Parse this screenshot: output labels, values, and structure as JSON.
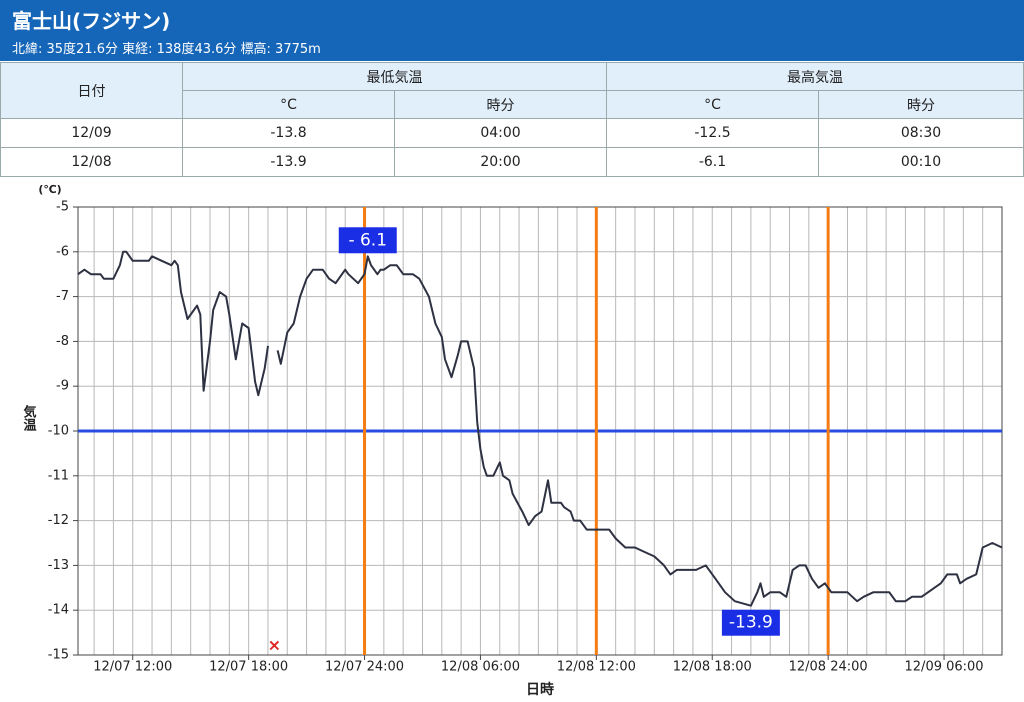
{
  "header": {
    "title": "富士山(フジサン)",
    "subtitle": "北緯: 35度21.6分 東経: 138度43.6分 標高: 3775m"
  },
  "table": {
    "header": [
      "日付",
      "最低気温",
      "最高気温"
    ],
    "subheader": [
      "°C",
      "時分",
      "°C",
      "時分"
    ],
    "rows": [
      [
        "12/09",
        "-13.8",
        "04:00",
        "-12.5",
        "08:30"
      ],
      [
        "12/08",
        "-13.9",
        "20:00",
        "-6.1",
        "00:10"
      ]
    ]
  },
  "chart_data": {
    "type": "line",
    "y_unit": "(℃)",
    "ylabel": "気温",
    "xlabel": "日時",
    "color": "#2e3142",
    "xlim": [
      "12/07 09:10",
      "12/09 09:00"
    ],
    "ylim": [
      -5,
      -15
    ],
    "yticks": [
      -5,
      -6,
      -7,
      -8,
      -9,
      -10,
      -11,
      -12,
      -13,
      -14,
      -15
    ],
    "xticks": [
      "12/07 12:00",
      "12/07 18:00",
      "12/07 24:00",
      "12/08 06:00",
      "12/08 12:00",
      "12/08 18:00",
      "12/08 24:00",
      "12/09 06:00"
    ],
    "grid": true,
    "xgrid_minutes": 60,
    "hlines": [
      {
        "value": -10,
        "color": "#2a4be0"
      }
    ],
    "vlines": [
      {
        "x": "12/07 24:00",
        "color": "#f57c12"
      },
      {
        "x": "12/08 12:00",
        "color": "#f57c12"
      },
      {
        "x": "12/08 24:00",
        "color": "#f57c12"
      }
    ],
    "annotations": [
      {
        "text": "- 6.1",
        "x": "12/08 00:10",
        "y": -6.1,
        "position": "above",
        "color": "#1a2ee6"
      },
      {
        "text": "-13.9",
        "x": "12/08 20:00",
        "y": -13.9,
        "position": "below",
        "color": "#1a2ee6"
      }
    ],
    "markers": [
      {
        "x": "12/07 19:20",
        "y": -14.8,
        "symbol": "×",
        "color": "#e02020"
      }
    ],
    "x": [
      "12/07 09:10",
      "12/07 09:30",
      "12/07 09:50",
      "12/07 10:20",
      "12/07 10:30",
      "12/07 11:00",
      "12/07 11:20",
      "12/07 11:30",
      "12/07 11:40",
      "12/07 12:00",
      "12/07 12:50",
      "12/07 13:00",
      "12/07 13:30",
      "12/07 14:00",
      "12/07 14:10",
      "12/07 14:20",
      "12/07 14:30",
      "12/07 14:50",
      "12/07 15:00",
      "12/07 15:20",
      "12/07 15:30",
      "12/07 15:40",
      "12/07 16:00",
      "12/07 16:10",
      "12/07 16:30",
      "12/07 16:50",
      "12/07 17:00",
      "12/07 17:20",
      "12/07 17:40",
      "12/07 18:00",
      "12/07 18:20",
      "12/07 18:30",
      "12/07 18:50",
      "12/07 19:00",
      "12/07 19:20",
      "12/07 19:30",
      "12/07 19:40",
      "12/07 20:00",
      "12/07 20:20",
      "12/07 20:40",
      "12/07 21:00",
      "12/07 21:20",
      "12/07 21:50",
      "12/07 22:10",
      "12/07 22:30",
      "12/07 22:40",
      "12/07 23:00",
      "12/07 23:10",
      "12/07 23:40",
      "12/08 00:00",
      "12/08 00:10",
      "12/08 00:20",
      "12/08 00:40",
      "12/08 00:50",
      "12/08 01:00",
      "12/08 01:20",
      "12/08 01:40",
      "12/08 02:00",
      "12/08 02:30",
      "12/08 02:50",
      "12/08 03:20",
      "12/08 03:40",
      "12/08 04:00",
      "12/08 04:10",
      "12/08 04:30",
      "12/08 04:50",
      "12/08 05:00",
      "12/08 05:20",
      "12/08 05:40",
      "12/08 05:50",
      "12/08 06:00",
      "12/08 06:10",
      "12/08 06:20",
      "12/08 06:40",
      "12/08 07:00",
      "12/08 07:10",
      "12/08 07:30",
      "12/08 07:40",
      "12/08 08:10",
      "12/08 08:30",
      "12/08 08:50",
      "12/08 09:10",
      "12/08 09:30",
      "12/08 09:40",
      "12/08 10:10",
      "12/08 10:20",
      "12/08 10:40",
      "12/08 10:50",
      "12/08 11:10",
      "12/08 11:30",
      "12/08 11:50",
      "12/08 12:40",
      "12/08 13:00",
      "12/08 13:30",
      "12/08 14:00",
      "12/08 14:30",
      "12/08 15:00",
      "12/08 15:30",
      "12/08 15:50",
      "12/08 16:10",
      "12/08 16:40",
      "12/08 17:10",
      "12/08 17:40",
      "12/08 18:10",
      "12/08 18:40",
      "12/08 19:10",
      "12/08 20:00",
      "12/08 20:20",
      "12/08 20:30",
      "12/08 20:40",
      "12/08 21:00",
      "12/08 21:30",
      "12/08 21:50",
      "12/08 22:10",
      "12/08 22:30",
      "12/08 22:50",
      "12/08 23:10",
      "12/08 23:30",
      "12/08 23:50",
      "12/09 00:10",
      "12/09 01:00",
      "12/09 01:30",
      "12/09 01:50",
      "12/09 02:20",
      "12/09 03:10",
      "12/09 03:30",
      "12/09 04:00",
      "12/09 04:20",
      "12/09 04:50",
      "12/09 05:10",
      "12/09 05:30",
      "12/09 05:50",
      "12/09 06:10",
      "12/09 06:40",
      "12/09 06:50",
      "12/09 07:10",
      "12/09 07:40",
      "12/09 08:00",
      "12/09 08:30",
      "12/09 09:00"
    ],
    "values": [
      -6.5,
      -6.4,
      -6.5,
      -6.5,
      -6.6,
      -6.6,
      -6.3,
      -6.0,
      -6.0,
      -6.2,
      -6.2,
      -6.1,
      -6.2,
      -6.3,
      -6.2,
      -6.3,
      -6.9,
      -7.5,
      -7.4,
      -7.2,
      -7.4,
      -9.1,
      -8.0,
      -7.3,
      -6.9,
      -7.0,
      -7.4,
      -8.4,
      -7.6,
      -7.7,
      -8.9,
      -9.2,
      -8.6,
      -8.1,
      null,
      -8.2,
      -8.5,
      -7.8,
      -7.6,
      -7.0,
      -6.6,
      -6.4,
      -6.4,
      -6.6,
      -6.7,
      -6.6,
      -6.4,
      -6.5,
      -6.7,
      -6.5,
      -6.1,
      -6.3,
      -6.5,
      -6.4,
      -6.4,
      -6.3,
      -6.3,
      -6.5,
      -6.5,
      -6.6,
      -7.0,
      -7.6,
      -7.9,
      -8.4,
      -8.8,
      -8.3,
      -8.0,
      -8.0,
      -8.6,
      -9.8,
      -10.4,
      -10.8,
      -11.0,
      -11.0,
      -10.7,
      -11.0,
      -11.1,
      -11.4,
      -11.8,
      -12.1,
      -11.9,
      -11.8,
      -11.1,
      -11.6,
      -11.6,
      -11.7,
      -11.8,
      -12.0,
      -12.0,
      -12.2,
      -12.2,
      -12.2,
      -12.4,
      -12.6,
      -12.6,
      -12.7,
      -12.8,
      -13.0,
      -13.2,
      -13.1,
      -13.1,
      -13.1,
      -13.0,
      -13.3,
      -13.6,
      -13.8,
      -13.9,
      -13.6,
      -13.4,
      -13.7,
      -13.6,
      -13.6,
      -13.7,
      -13.1,
      -13.0,
      -13.0,
      -13.3,
      -13.5,
      -13.4,
      -13.6,
      -13.6,
      -13.8,
      -13.7,
      -13.6,
      -13.6,
      -13.8,
      -13.8,
      -13.7,
      -13.7,
      -13.6,
      -13.5,
      -13.4,
      -13.2,
      -13.2,
      -13.4,
      -13.3,
      -13.2,
      -12.6,
      -12.5,
      -12.6
    ]
  }
}
